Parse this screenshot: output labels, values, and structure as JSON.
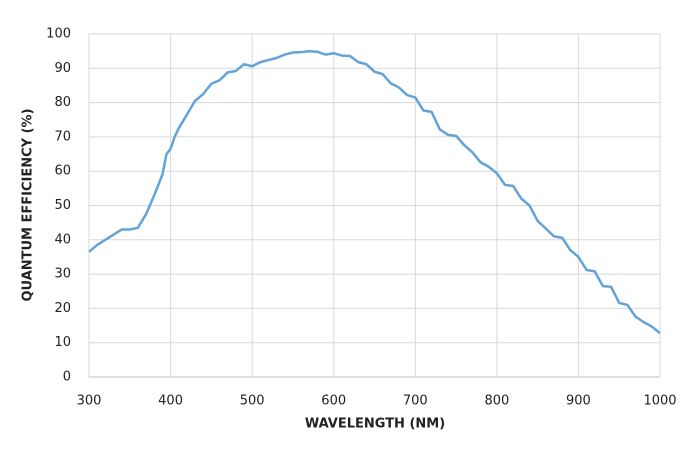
{
  "chart_data": {
    "type": "line",
    "xlabel": "WAVELENGTH (NM)",
    "ylabel": "QUANTUM EFFICIENCY (%)",
    "x": [
      300,
      310,
      320,
      330,
      340,
      350,
      360,
      370,
      380,
      390,
      395,
      400,
      405,
      410,
      420,
      430,
      440,
      450,
      460,
      470,
      480,
      490,
      500,
      510,
      520,
      530,
      540,
      550,
      560,
      570,
      580,
      590,
      600,
      610,
      620,
      630,
      640,
      650,
      660,
      670,
      680,
      690,
      700,
      710,
      720,
      730,
      740,
      750,
      760,
      770,
      780,
      790,
      800,
      810,
      820,
      830,
      840,
      850,
      860,
      870,
      880,
      890,
      900,
      910,
      920,
      930,
      940,
      950,
      960,
      970,
      980,
      990,
      1000
    ],
    "series": [
      {
        "color": "#64a3d8",
        "values": [
          36.5,
          38.5,
          40,
          41.5,
          43,
          43,
          43.5,
          47.5,
          53,
          59,
          65,
          66.5,
          70,
          72.5,
          76.5,
          80.5,
          82.5,
          85.5,
          86.5,
          88.8,
          89.2,
          91.2,
          90.6,
          91.8,
          92.4,
          93,
          94,
          94.6,
          94.7,
          95,
          94.8,
          94,
          94.4,
          93.7,
          93.6,
          91.8,
          91.2,
          89,
          88.3,
          85.6,
          84.4,
          82.2,
          81.5,
          77.7,
          77.3,
          72.2,
          70.6,
          70.3,
          67.6,
          65.5,
          62.6,
          61.3,
          59.4,
          56,
          55.7,
          52,
          50,
          45.5,
          43.3,
          41,
          40.6,
          37,
          35,
          31.2,
          30.8,
          26.5,
          26.3,
          21.6,
          21,
          17.6,
          16,
          14.7,
          12.8
        ]
      }
    ],
    "xlim": [
      300,
      1000
    ],
    "xticks": [
      300,
      400,
      500,
      600,
      700,
      800,
      900,
      1000
    ],
    "ylim": [
      0,
      100
    ],
    "yticks": [
      0,
      10,
      20,
      30,
      40,
      50,
      60,
      70,
      80,
      90,
      100
    ],
    "grid": true
  }
}
